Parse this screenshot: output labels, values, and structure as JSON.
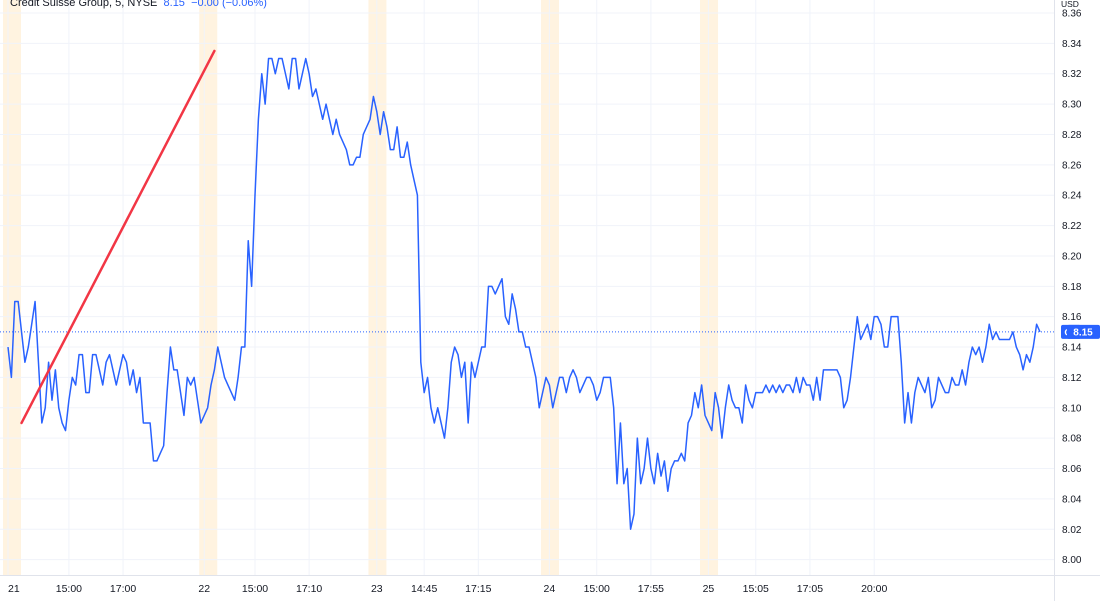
{
  "legend": {
    "symbol": "Credit Suisse Group",
    "interval": "5",
    "exchange": "NYSE",
    "last": "8.15",
    "change": "−0.00 (−0.06%)"
  },
  "currency": "USD",
  "ticker_badge": "CS",
  "last_price_label": "8.15",
  "colors": {
    "line": "#2962ff",
    "trend_line": "#f23645",
    "session_band": "#fff3e0",
    "badge_bg": "#2962ff",
    "badge_text": "#ffffff"
  },
  "chart_data": {
    "type": "line",
    "title": "Credit Suisse Group, 5, NYSE",
    "xlabel": "",
    "ylabel": "USD",
    "ylim": [
      7.99,
      8.365
    ],
    "y_ticks": [
      "8.36",
      "8.34",
      "8.32",
      "8.30",
      "8.28",
      "8.26",
      "8.24",
      "8.22",
      "8.20",
      "8.18",
      "8.16",
      "8.14",
      "8.12",
      "8.10",
      "8.08",
      "8.06",
      "8.04",
      "8.02",
      "8.00"
    ],
    "x_ticks": [
      {
        "label": "21",
        "i": 0
      },
      {
        "label": "15:00",
        "i": 18
      },
      {
        "label": "17:00",
        "i": 34
      },
      {
        "label": "22",
        "i": 58
      },
      {
        "label": "15:00",
        "i": 73
      },
      {
        "label": "17:10",
        "i": 89
      },
      {
        "label": "23",
        "i": 109
      },
      {
        "label": "14:45",
        "i": 123
      },
      {
        "label": "17:15",
        "i": 139
      },
      {
        "label": "24",
        "i": 160
      },
      {
        "label": "15:00",
        "i": 174
      },
      {
        "label": "17:55",
        "i": 190
      },
      {
        "label": "25",
        "i": 207
      },
      {
        "label": "15:05",
        "i": 221
      },
      {
        "label": "17:05",
        "i": 237
      },
      {
        "label": "20:00",
        "i": 256
      }
    ],
    "session_starts": [
      0,
      58,
      108,
      159,
      206
    ],
    "series": [
      {
        "values": [
          8.14,
          8.12,
          8.17,
          8.17,
          8.15,
          8.13,
          8.14,
          8.155,
          8.17,
          8.13,
          8.09,
          8.1,
          8.13,
          8.105,
          8.125,
          8.1,
          8.09,
          8.085,
          8.105,
          8.12,
          8.115,
          8.135,
          8.135,
          8.11,
          8.11,
          8.135,
          8.135,
          8.125,
          8.115,
          8.13,
          8.135,
          8.125,
          8.115,
          8.125,
          8.135,
          8.13,
          8.115,
          8.125,
          8.11,
          8.12,
          8.09,
          8.09,
          8.09,
          8.065,
          8.065,
          8.07,
          8.075,
          8.11,
          8.14,
          8.125,
          8.125,
          8.11,
          8.095,
          8.12,
          8.115,
          8.12,
          8.105,
          8.09,
          8.095,
          8.1,
          8.115,
          8.125,
          8.14,
          8.13,
          8.12,
          8.115,
          8.11,
          8.105,
          8.12,
          8.14,
          8.14,
          8.21,
          8.18,
          8.24,
          8.29,
          8.32,
          8.3,
          8.33,
          8.33,
          8.32,
          8.33,
          8.33,
          8.32,
          8.31,
          8.33,
          8.33,
          8.31,
          8.32,
          8.33,
          8.32,
          8.305,
          8.31,
          8.3,
          8.29,
          8.3,
          8.29,
          8.28,
          8.29,
          8.28,
          8.275,
          8.27,
          8.26,
          8.26,
          8.265,
          8.265,
          8.28,
          8.285,
          8.29,
          8.305,
          8.295,
          8.28,
          8.295,
          8.285,
          8.27,
          8.27,
          8.285,
          8.265,
          8.265,
          8.275,
          8.26,
          8.25,
          8.24,
          8.13,
          8.11,
          8.12,
          8.1,
          8.09,
          8.1,
          8.09,
          8.08,
          8.1,
          8.13,
          8.14,
          8.135,
          8.12,
          8.13,
          8.09,
          8.13,
          8.12,
          8.13,
          8.14,
          8.14,
          8.18,
          8.18,
          8.175,
          8.18,
          8.185,
          8.16,
          8.155,
          8.175,
          8.165,
          8.15,
          8.15,
          8.14,
          8.14,
          8.13,
          8.12,
          8.1,
          8.11,
          8.12,
          8.115,
          8.1,
          8.11,
          8.12,
          8.12,
          8.11,
          8.12,
          8.125,
          8.12,
          8.11,
          8.115,
          8.12,
          8.12,
          8.115,
          8.105,
          8.11,
          8.12,
          8.12,
          8.12,
          8.1,
          8.05,
          8.09,
          8.05,
          8.06,
          8.02,
          8.03,
          8.08,
          8.05,
          8.06,
          8.08,
          8.06,
          8.05,
          8.07,
          8.055,
          8.065,
          8.045,
          8.06,
          8.065,
          8.065,
          8.07,
          8.065,
          8.09,
          8.095,
          8.11,
          8.1,
          8.115,
          8.095,
          8.09,
          8.085,
          8.11,
          8.1,
          8.08,
          8.1,
          8.115,
          8.105,
          8.1,
          8.1,
          8.09,
          8.115,
          8.105,
          8.1,
          8.11,
          8.11,
          8.11,
          8.115,
          8.11,
          8.115,
          8.11,
          8.115,
          8.11,
          8.115,
          8.115,
          8.11,
          8.12,
          8.11,
          8.12,
          8.115,
          8.115,
          8.105,
          8.12,
          8.105,
          8.125,
          8.125,
          8.125,
          8.125,
          8.125,
          8.12,
          8.1,
          8.105,
          8.12,
          8.14,
          8.16,
          8.145,
          8.15,
          8.155,
          8.145,
          8.16,
          8.16,
          8.155,
          8.14,
          8.14,
          8.16,
          8.16,
          8.16,
          8.13,
          8.09,
          8.11,
          8.09,
          8.11,
          8.12,
          8.115,
          8.11,
          8.12,
          8.1,
          8.105,
          8.12,
          8.115,
          8.11,
          8.11,
          8.12,
          8.115,
          8.115,
          8.125,
          8.115,
          8.13,
          8.14,
          8.135,
          8.14,
          8.13,
          8.14,
          8.155,
          8.145,
          8.15,
          8.145,
          8.145,
          8.145,
          8.145,
          8.15,
          8.14,
          8.135,
          8.125,
          8.135,
          8.13,
          8.14,
          8.155,
          8.15
        ]
      }
    ],
    "trend_line": [
      {
        "i": 4,
        "price": 8.09
      },
      {
        "i": 61,
        "price": 8.335
      }
    ],
    "last_price": 8.15,
    "grid": true,
    "legend_position": "top-left"
  }
}
